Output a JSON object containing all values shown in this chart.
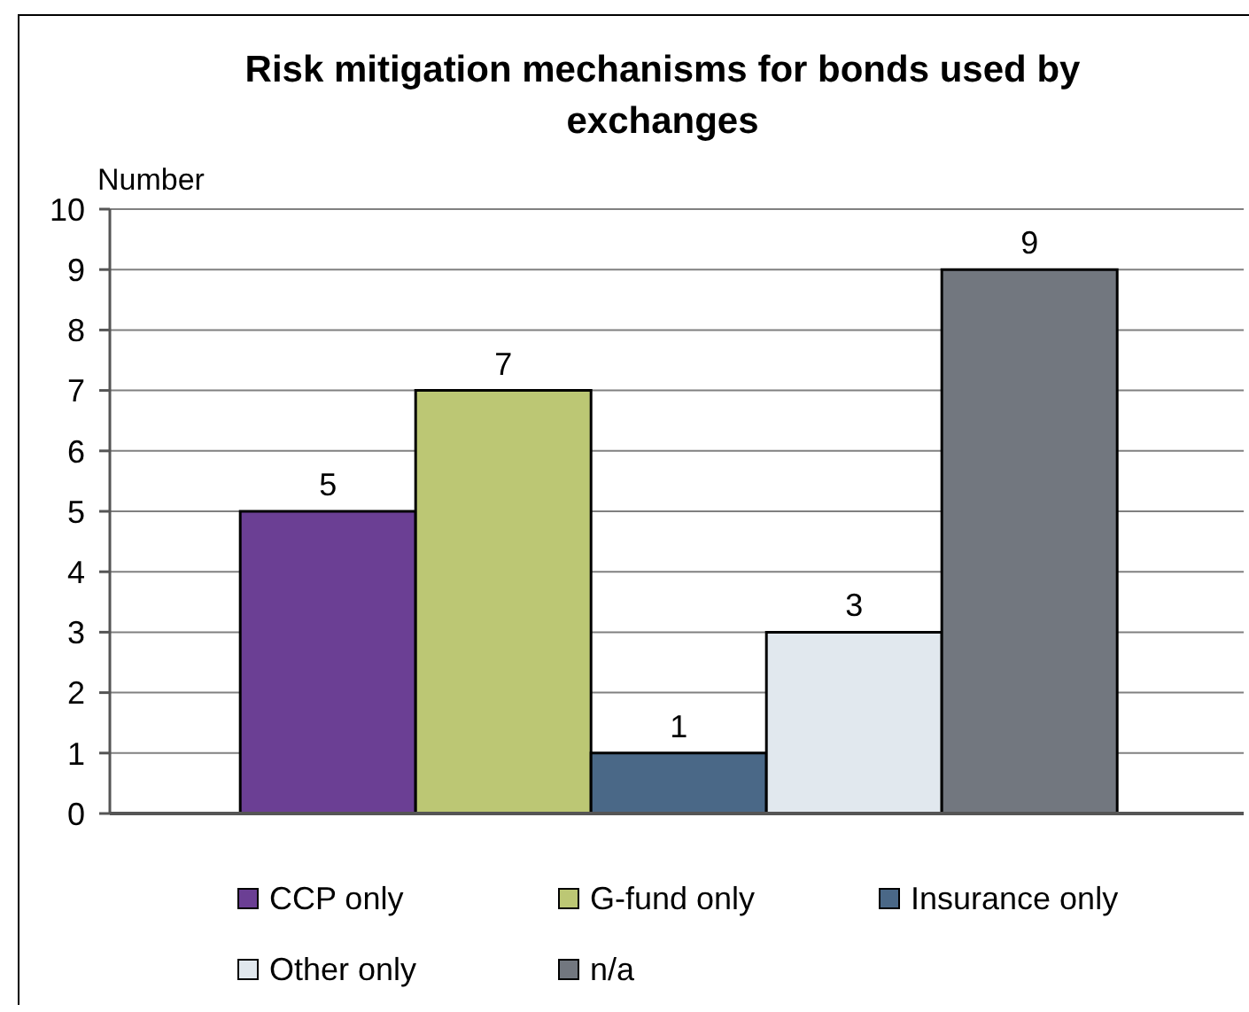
{
  "chart_data": {
    "type": "bar",
    "title": "Risk mitigation mechanisms for bonds used by exchanges",
    "ylabel": "Number",
    "categories": [
      null
    ],
    "series": [
      {
        "name": "CCP only",
        "color": "#6b3f94",
        "values": [
          5
        ]
      },
      {
        "name": "G-fund only",
        "color": "#bcc774",
        "values": [
          7
        ]
      },
      {
        "name": "Insurance only",
        "color": "#4a6887",
        "values": [
          1
        ]
      },
      {
        "name": "Other only",
        "color": "#e1e8ee",
        "values": [
          3
        ]
      },
      {
        "name": "n/a",
        "color": "#72777f",
        "values": [
          9
        ]
      }
    ],
    "ylim": [
      0,
      10
    ],
    "yticks": [
      0,
      1,
      2,
      3,
      4,
      5,
      6,
      7,
      8,
      9,
      10
    ],
    "grid": "y",
    "legend": "bottom",
    "data_labels": true
  }
}
